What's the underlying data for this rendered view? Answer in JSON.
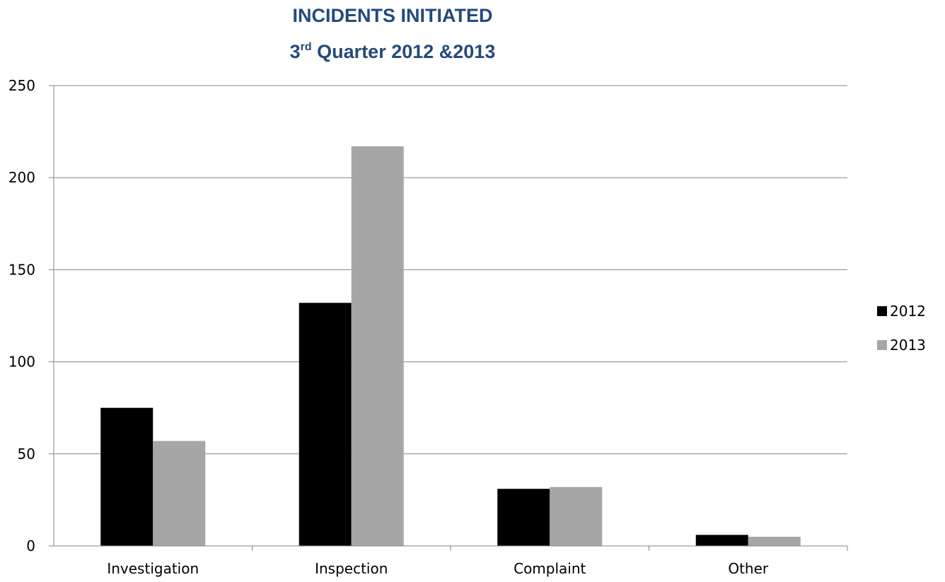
{
  "chart_data": {
    "type": "bar",
    "title_line1": "INCIDENTS INITIATED",
    "title_line2_prefix": "3",
    "title_line2_sup": "rd",
    "title_line2_rest": " Quarter 2012 &2013",
    "categories": [
      "Investigation",
      "Inspection",
      "Complaint",
      "Other"
    ],
    "series": [
      {
        "name": "2012",
        "values": [
          75,
          132,
          31,
          6
        ],
        "color": "#000000"
      },
      {
        "name": "2013",
        "values": [
          57,
          217,
          32,
          5
        ],
        "color": "#a6a6a6"
      }
    ],
    "ylim": [
      0,
      250
    ],
    "yticks": [
      0,
      50,
      100,
      150,
      200,
      250
    ],
    "xlabel": "",
    "ylabel": "",
    "grid": true,
    "legend": "right",
    "colors": {
      "title": "#244a7c",
      "grid": "#868686",
      "axis": "#868686"
    }
  }
}
